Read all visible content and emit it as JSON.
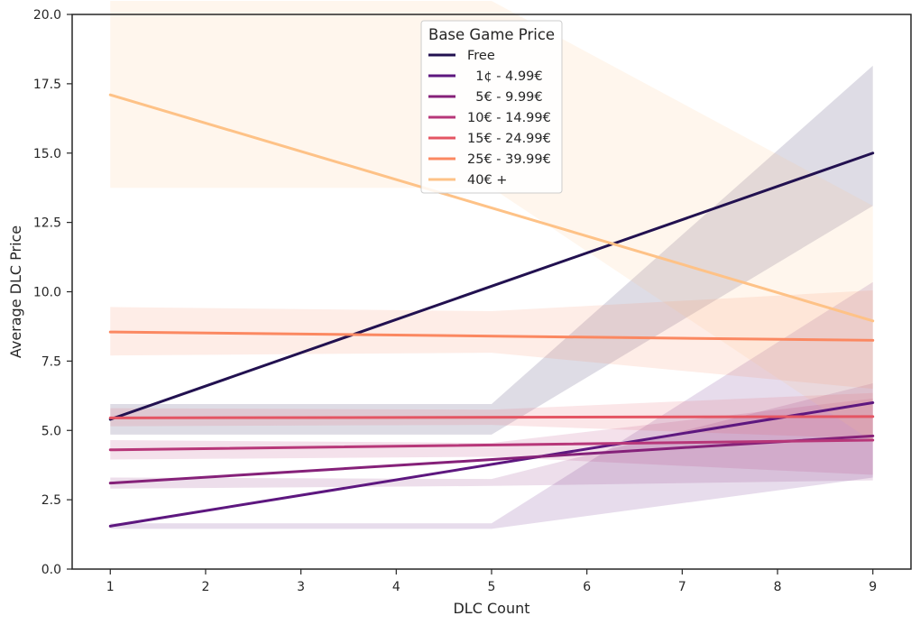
{
  "chart_data": {
    "type": "line",
    "title": "",
    "xlabel": "DLC Count",
    "ylabel": "Average DLC Price",
    "xlim": [
      0.6,
      9.4
    ],
    "ylim": [
      0.0,
      20.0
    ],
    "xticks": [
      1,
      2,
      3,
      4,
      5,
      6,
      7,
      8,
      9
    ],
    "yticks": [
      0.0,
      2.5,
      5.0,
      7.5,
      10.0,
      12.5,
      15.0,
      17.5,
      20.0
    ],
    "ytick_labels": [
      "0.0",
      "2.5",
      "5.0",
      "7.5",
      "10.0",
      "12.5",
      "15.0",
      "17.5",
      "20.0"
    ],
    "grid": false,
    "legend": {
      "title": "Base Game Price",
      "placement": "top-center"
    },
    "x_range": [
      1,
      9
    ],
    "series": [
      {
        "name": "Free",
        "color": "#221150",
        "y_start": 5.4,
        "y_end": 15.0,
        "ci_lower": [
          4.85,
          4.85,
          13.1
        ],
        "ci_upper": [
          5.95,
          5.95,
          18.15
        ]
      },
      {
        "name": "  1¢ - 4.99€",
        "color": "#5d177f",
        "y_start": 1.55,
        "y_end": 6.0,
        "ci_lower": [
          1.45,
          1.45,
          3.3
        ],
        "ci_upper": [
          1.65,
          1.65,
          10.35
        ]
      },
      {
        "name": "  5€ - 9.99€",
        "color": "#852179",
        "y_start": 3.1,
        "y_end": 4.8,
        "ci_lower": [
          2.9,
          3.0,
          3.2
        ],
        "ci_upper": [
          3.3,
          3.25,
          6.7
        ]
      },
      {
        "name": "10€ - 14.99€",
        "color": "#b73779",
        "y_start": 4.3,
        "y_end": 4.65,
        "ci_lower": [
          3.95,
          4.05,
          3.4
        ],
        "ci_upper": [
          4.65,
          4.55,
          6.15
        ]
      },
      {
        "name": "15€ - 24.99€",
        "color": "#e45563",
        "y_start": 5.45,
        "y_end": 5.5,
        "ci_lower": [
          5.15,
          5.2,
          4.7
        ],
        "ci_upper": [
          5.8,
          5.75,
          6.35
        ]
      },
      {
        "name": "25€ - 39.99€",
        "color": "#fb8861",
        "y_start": 8.55,
        "y_end": 8.25,
        "ci_lower": [
          7.7,
          7.8,
          6.5
        ],
        "ci_upper": [
          9.45,
          9.3,
          10.05
        ]
      },
      {
        "name": "40€ +",
        "color": "#fec287",
        "y_start": 17.1,
        "y_end": 8.95,
        "ci_lower": [
          13.75,
          13.75,
          4.6
        ],
        "ci_upper": [
          20.5,
          20.5,
          13.1
        ]
      }
    ]
  }
}
